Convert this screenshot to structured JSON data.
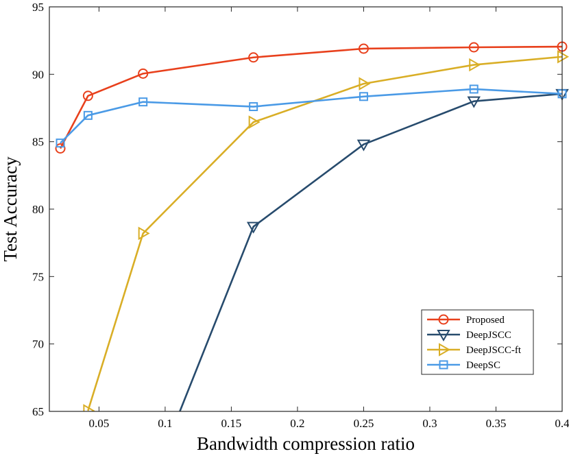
{
  "chart_data": {
    "type": "line",
    "title": "",
    "xlabel": "Bandwidth compression ratio",
    "ylabel": "Test Accuracy",
    "xlim": [
      0.0125,
      0.4
    ],
    "ylim": [
      65,
      95
    ],
    "xticks": [
      0.05,
      0.1,
      0.15,
      0.2,
      0.25,
      0.3,
      0.35,
      0.4
    ],
    "xtick_labels": [
      "0.05",
      "0.1",
      "0.15",
      "0.2",
      "0.25",
      "0.3",
      "0.35",
      "0.4"
    ],
    "yticks": [
      65,
      70,
      75,
      80,
      85,
      90,
      95
    ],
    "ytick_labels": [
      "65",
      "70",
      "75",
      "80",
      "85",
      "90",
      "95"
    ],
    "grid": false,
    "legend_position": "bottom-right",
    "series": [
      {
        "name": "Proposed",
        "color": "#E8401C",
        "marker": "circle",
        "x": [
          0.0208,
          0.0417,
          0.0833,
          0.1667,
          0.25,
          0.3333,
          0.4
        ],
        "values": [
          84.5,
          88.4,
          90.05,
          91.25,
          91.9,
          92.0,
          92.05
        ]
      },
      {
        "name": "DeepJSCC",
        "color": "#274B6D",
        "marker": "triangle-down",
        "x": [
          0.1667,
          0.25,
          0.3333,
          0.4
        ],
        "values": [
          78.7,
          84.8,
          88.0,
          88.55
        ],
        "extend_to_left_x": 0.1111,
        "extend_to_left_y": 65
      },
      {
        "name": "DeepJSCC-ft",
        "color": "#D9AE26",
        "marker": "triangle-right",
        "x": [
          0.0417,
          0.0833,
          0.1667,
          0.25,
          0.3333,
          0.4
        ],
        "values": [
          65.05,
          78.2,
          86.45,
          89.3,
          90.7,
          91.3
        ]
      },
      {
        "name": "DeepSC",
        "color": "#4A9AE6",
        "marker": "square",
        "x": [
          0.0208,
          0.0417,
          0.0833,
          0.1667,
          0.25,
          0.3333,
          0.4
        ],
        "values": [
          84.9,
          86.95,
          87.95,
          87.6,
          88.35,
          88.9,
          88.55
        ]
      }
    ]
  }
}
